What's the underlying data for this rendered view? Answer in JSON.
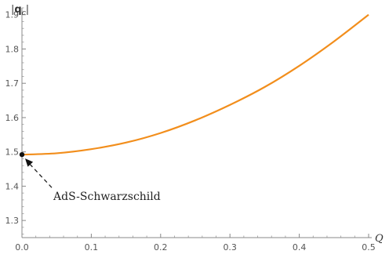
{
  "chart_data": {
    "type": "line",
    "xlabel": "Q",
    "ylabel": "|q_c|",
    "xlim": [
      0,
      0.5
    ],
    "ylim": [
      1.25,
      1.92
    ],
    "x_ticks": [
      "0.0",
      "0.1",
      "0.2",
      "0.3",
      "0.4",
      "0.5"
    ],
    "y_ticks": [
      "1.3",
      "1.4",
      "1.5",
      "1.6",
      "1.7",
      "1.8",
      "1.9"
    ],
    "series": [
      {
        "color": "#f28e1c",
        "x": [
          0.0,
          0.05,
          0.1,
          0.15,
          0.2,
          0.25,
          0.3,
          0.35,
          0.4,
          0.45,
          0.5
        ],
        "y": [
          1.492,
          1.496,
          1.508,
          1.527,
          1.555,
          1.592,
          1.637,
          1.689,
          1.751,
          1.822,
          1.9
        ]
      }
    ],
    "point": {
      "x": 0.0,
      "y": 1.492,
      "color": "#111111"
    },
    "annotation": {
      "text": "AdS-Schwarzschild",
      "x": 0.0,
      "y": 1.492
    }
  }
}
